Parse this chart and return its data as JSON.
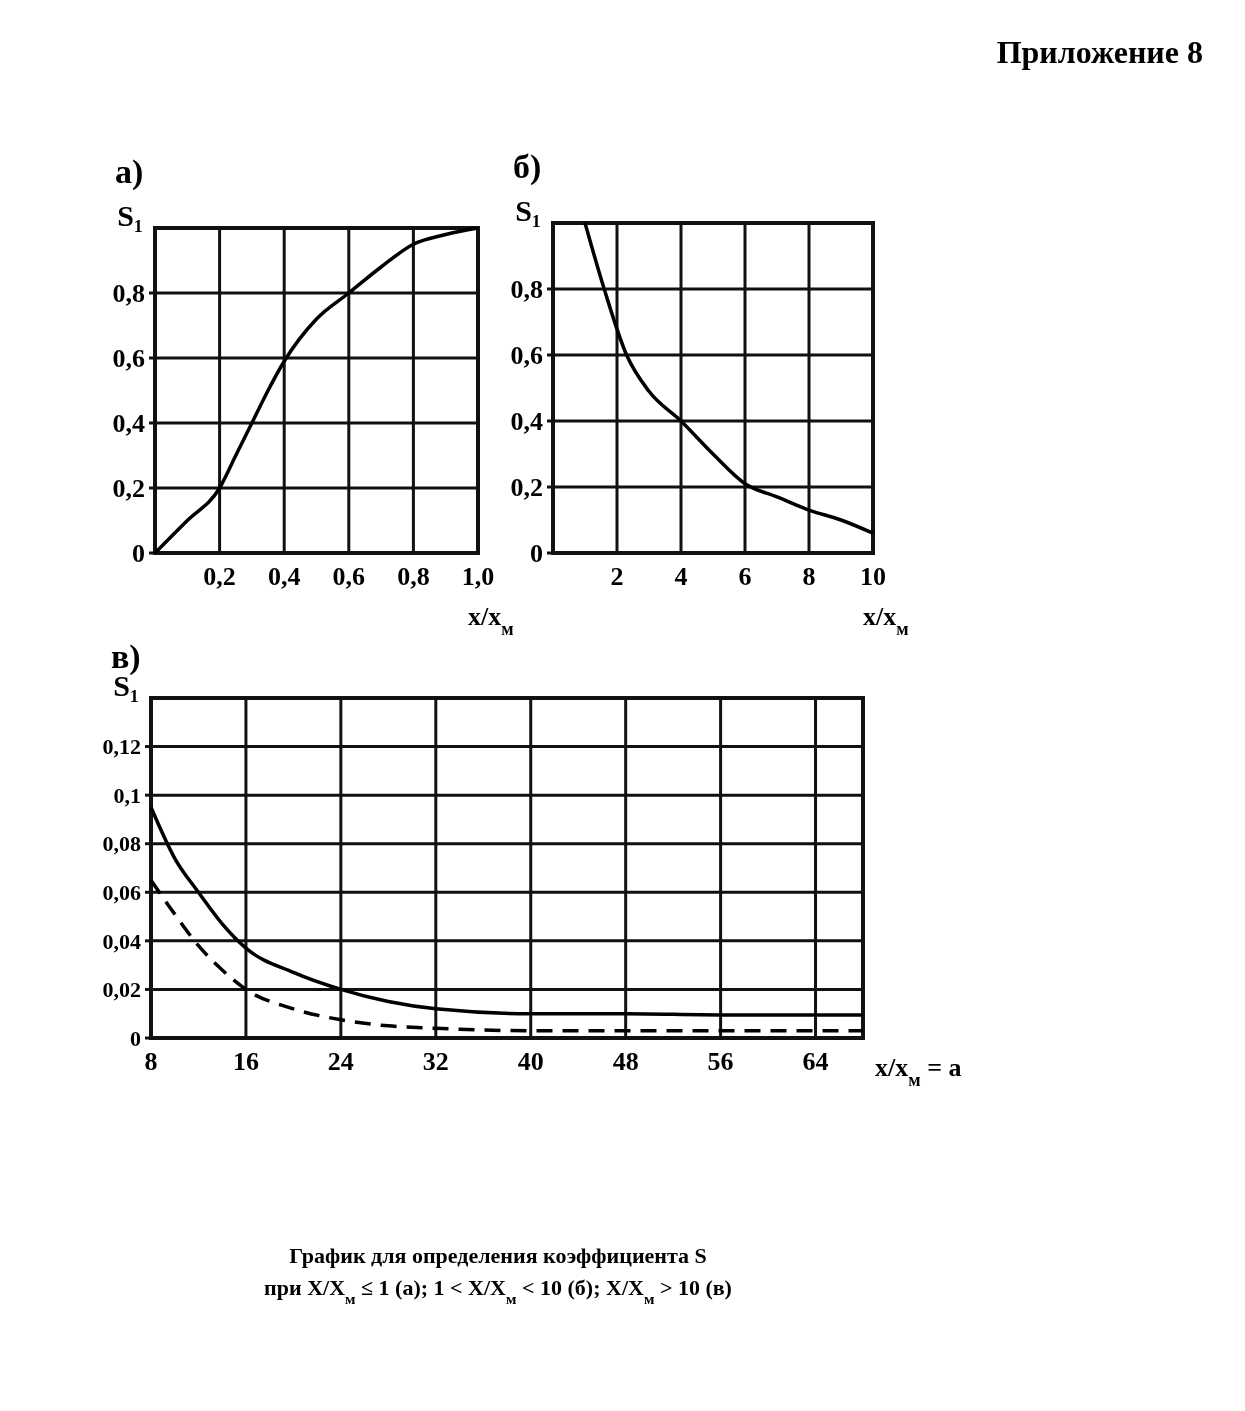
{
  "chart_data": [
    {
      "type": "line",
      "title": "а)",
      "xlabel": "x/x$_{м}$",
      "ylabel": "S₁",
      "annotations": [
        "Приложение 8"
      ],
      "xlim": [
        0,
        1
      ],
      "ylim": [
        0,
        1
      ],
      "xticks": [
        {
          "value": 0.2,
          "label": "0,2"
        },
        {
          "value": 0.4,
          "label": "0,4"
        },
        {
          "value": 0.6,
          "label": "0,6"
        },
        {
          "value": 0.8,
          "label": "0,8"
        },
        {
          "value": 1,
          "label": "1,0"
        }
      ],
      "yticks": [
        {
          "value": 0,
          "label": "0"
        },
        {
          "value": 0.2,
          "label": "0,2"
        },
        {
          "value": 0.4,
          "label": "0,4"
        },
        {
          "value": 0.6,
          "label": "0,6"
        },
        {
          "value": 0.8,
          "label": "0,8"
        }
      ],
      "grid": true,
      "x": [
        0,
        0.1,
        0.2,
        0.25,
        0.3,
        0.35,
        0.4,
        0.5,
        0.6,
        0.7,
        0.8,
        0.9,
        1.0
      ],
      "series": [
        {
          "color": "#000000",
          "values": [
            0,
            0.1,
            0.2,
            0.3,
            0.4,
            0.5,
            0.59,
            0.72,
            0.8,
            0.88,
            0.95,
            0.98,
            1.0
          ]
        }
      ]
    },
    {
      "type": "line",
      "title": "б)",
      "xlabel": "x/x$_{м}$",
      "ylabel": "S₁",
      "xlim": [
        0,
        10
      ],
      "ylim": [
        0,
        1
      ],
      "xticks": [
        2,
        4,
        6,
        8,
        10
      ],
      "yticks": [
        {
          "value": 0,
          "label": "0"
        },
        {
          "value": 0.2,
          "label": "0,2"
        },
        {
          "value": 0.4,
          "label": "0,4"
        },
        {
          "value": 0.6,
          "label": "0,6"
        },
        {
          "value": 0.8,
          "label": "0,8"
        }
      ],
      "grid": true,
      "x": [
        1,
        1.6,
        2.3,
        3,
        4,
        5,
        6,
        7,
        8,
        9,
        10
      ],
      "series": [
        {
          "color": "#000000",
          "values": [
            1.0,
            0.8,
            0.6,
            0.49,
            0.4,
            0.3,
            0.21,
            0.17,
            0.13,
            0.1,
            0.06
          ]
        }
      ]
    },
    {
      "type": "line",
      "title": "в)",
      "xlabel": "x/x$_{м}$ = a",
      "ylabel": "S₁",
      "annotations": [
        "График для определения коэффициента S",
        "при X/X$_{м}$ ≤ 1 (а); 1 < X/X$_{м}$ < 10 (б); X/X$_{м}$ > 10 (в)"
      ],
      "xlim": [
        8,
        68
      ],
      "ylim": [
        0,
        0.14
      ],
      "xticks": [
        8,
        16,
        24,
        32,
        40,
        48,
        56,
        64
      ],
      "yticks": [
        {
          "value": 0,
          "label": "0"
        },
        {
          "value": 0.02,
          "label": "0,02"
        },
        {
          "value": 0.04,
          "label": "0,04"
        },
        {
          "value": 0.06,
          "label": "0,06"
        },
        {
          "value": 0.08,
          "label": "0,08"
        },
        {
          "value": 0.1,
          "label": "0,1"
        },
        {
          "value": 0.12,
          "label": "0,12"
        }
      ],
      "grid": true,
      "x": [
        8,
        10,
        12,
        14,
        16,
        20,
        24,
        28,
        32,
        40,
        48,
        56,
        64,
        68
      ],
      "series": [
        {
          "color": "#000000",
          "line_style": "solid",
          "values": [
            0.095,
            0.074,
            0.06,
            0.047,
            0.037,
            0.027,
            0.02,
            0.015,
            0.012,
            0.01,
            0.01,
            0.0095,
            0.0095,
            0.0095
          ]
        },
        {
          "color": "#000000",
          "line_style": "dashed",
          "values": [
            0.065,
            0.051,
            0.038,
            0.028,
            0.02,
            0.012,
            0.0075,
            0.005,
            0.004,
            0.003,
            0.003,
            0.003,
            0.003,
            0.003
          ]
        }
      ]
    }
  ]
}
